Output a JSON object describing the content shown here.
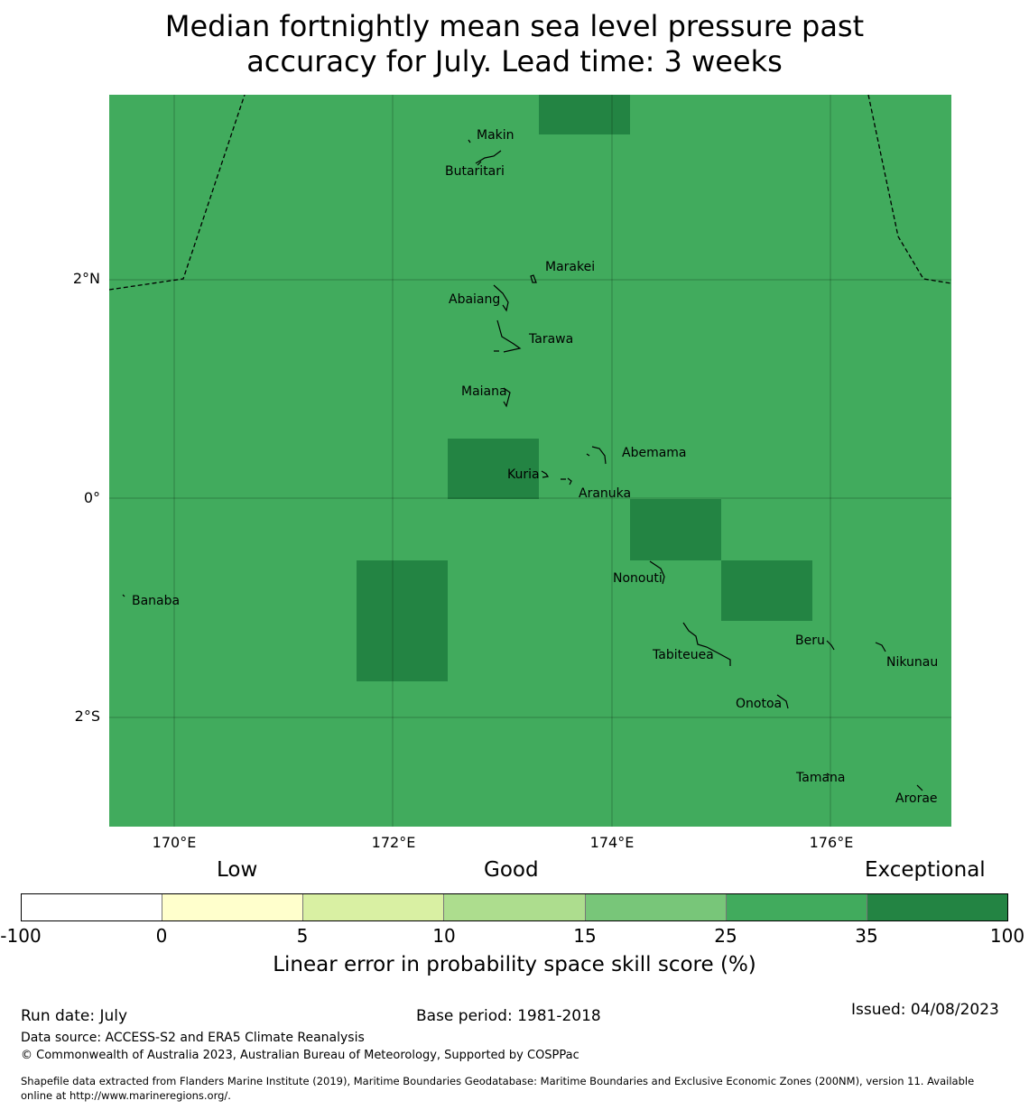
{
  "title": {
    "line1": "Median fortnightly mean sea level pressure past",
    "line2": "accuracy for July. Lead time: 3 weeks"
  },
  "map": {
    "ocean_color": "#41ab5d",
    "exceptional_color": "#238443",
    "latitude_ticks": [
      "2°N",
      "0°",
      "2°S"
    ],
    "longitude_ticks": [
      "170°E",
      "172°E",
      "174°E",
      "176°E"
    ],
    "islands": [
      "Makin",
      "Butaritari",
      "Marakei",
      "Abaiang",
      "Tarawa",
      "Maiana",
      "Abemama",
      "Kuria",
      "Aranuka",
      "Nonouti",
      "Banaba",
      "Tabiteuea",
      "Beru",
      "Nikunau",
      "Onotoa",
      "Tamana",
      "Arorae"
    ]
  },
  "legend": {
    "categories": [
      "Low",
      "Good",
      "Exceptional"
    ],
    "ticks": [
      "-100",
      "0",
      "5",
      "10",
      "15",
      "25",
      "35",
      "100"
    ],
    "colors": [
      "#ffffff",
      "#ffffcc",
      "#d9f0a3",
      "#addd8e",
      "#78c679",
      "#41ab5d",
      "#238443"
    ],
    "title": "Linear error in probability space skill score (%)"
  },
  "footer": {
    "run_date": "Run date: July",
    "base_period": "Base period: 1981-2018",
    "issued": "Issued: 04/08/2023",
    "data_source": "Data source: ACCESS-S2 and ERA5 Climate Reanalysis",
    "copyright": "© Commonwealth of Australia 2023, Australian Bureau of Meteorology, Supported by COSPPac",
    "shapefile_line1": "Shapefile data extracted from Flanders Marine Institute (2019), Maritime Boundaries Geodatabase: Maritime Boundaries and Exclusive Economic Zones (200NM), version 11. Available",
    "shapefile_line2": "online at http://www.marineregions.org/."
  }
}
